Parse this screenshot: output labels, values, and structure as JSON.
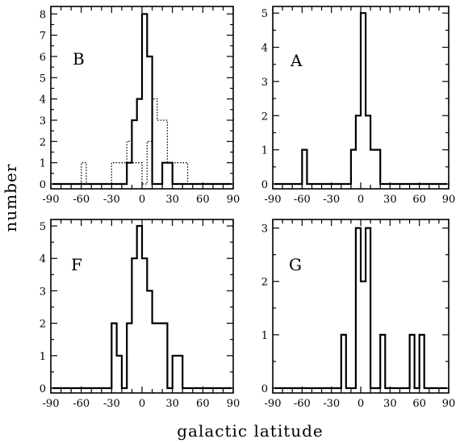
{
  "chart_data": {
    "type": "histogram",
    "xlabel": "galactic latitude",
    "ylabel": "number",
    "xlim": [
      -90,
      90
    ],
    "xticks": [
      -90,
      -60,
      -30,
      0,
      30,
      60,
      90
    ],
    "bin_width": 5,
    "panels": [
      {
        "label": "B",
        "ylim": [
          0,
          8.2
        ],
        "yticks": [
          0,
          1,
          2,
          3,
          4,
          5,
          6,
          7,
          8
        ],
        "series": [
          {
            "style": "solid",
            "bins": [
              {
                "x0": -15,
                "x1": -10,
                "count": 1
              },
              {
                "x0": -10,
                "x1": -5,
                "count": 3
              },
              {
                "x0": -5,
                "x1": 0,
                "count": 4
              },
              {
                "x0": 0,
                "x1": 5,
                "count": 8
              },
              {
                "x0": 5,
                "x1": 10,
                "count": 6
              },
              {
                "x0": 10,
                "x1": 15,
                "count": 0
              },
              {
                "x0": 15,
                "x1": 20,
                "count": 0
              },
              {
                "x0": 20,
                "x1": 25,
                "count": 1
              },
              {
                "x0": 25,
                "x1": 30,
                "count": 1
              }
            ]
          },
          {
            "style": "dotted",
            "bins": [
              {
                "x0": -60,
                "x1": -55,
                "count": 1
              },
              {
                "x0": -30,
                "x1": -25,
                "count": 1
              },
              {
                "x0": -25,
                "x1": -20,
                "count": 1
              },
              {
                "x0": -20,
                "x1": -15,
                "count": 1
              },
              {
                "x0": -15,
                "x1": -10,
                "count": 2
              },
              {
                "x0": -10,
                "x1": -5,
                "count": 1
              },
              {
                "x0": -5,
                "x1": 0,
                "count": 1
              },
              {
                "x0": 0,
                "x1": 5,
                "count": 0
              },
              {
                "x0": 5,
                "x1": 10,
                "count": 2
              },
              {
                "x0": 10,
                "x1": 15,
                "count": 4
              },
              {
                "x0": 15,
                "x1": 20,
                "count": 3
              },
              {
                "x0": 20,
                "x1": 25,
                "count": 3
              },
              {
                "x0": 25,
                "x1": 30,
                "count": 1
              },
              {
                "x0": 30,
                "x1": 35,
                "count": 1
              },
              {
                "x0": 35,
                "x1": 40,
                "count": 1
              },
              {
                "x0": 40,
                "x1": 45,
                "count": 1
              }
            ]
          }
        ]
      },
      {
        "label": "A",
        "ylim": [
          0,
          5.1
        ],
        "yticks": [
          0,
          1,
          2,
          3,
          4,
          5
        ],
        "series": [
          {
            "style": "solid",
            "bins": [
              {
                "x0": -60,
                "x1": -55,
                "count": 1
              },
              {
                "x0": -10,
                "x1": -5,
                "count": 1
              },
              {
                "x0": -5,
                "x1": 0,
                "count": 2
              },
              {
                "x0": 0,
                "x1": 5,
                "count": 5
              },
              {
                "x0": 5,
                "x1": 10,
                "count": 2
              },
              {
                "x0": 10,
                "x1": 15,
                "count": 1
              },
              {
                "x0": 15,
                "x1": 20,
                "count": 1
              }
            ]
          }
        ]
      },
      {
        "label": "F",
        "ylim": [
          0,
          5.1
        ],
        "yticks": [
          0,
          1,
          2,
          3,
          4,
          5
        ],
        "series": [
          {
            "style": "solid",
            "bins": [
              {
                "x0": -30,
                "x1": -25,
                "count": 2
              },
              {
                "x0": -25,
                "x1": -20,
                "count": 1
              },
              {
                "x0": -20,
                "x1": -15,
                "count": 0
              },
              {
                "x0": -15,
                "x1": -10,
                "count": 2
              },
              {
                "x0": -10,
                "x1": -5,
                "count": 4
              },
              {
                "x0": -5,
                "x1": 0,
                "count": 5
              },
              {
                "x0": 0,
                "x1": 5,
                "count": 4
              },
              {
                "x0": 5,
                "x1": 10,
                "count": 3
              },
              {
                "x0": 10,
                "x1": 15,
                "count": 2
              },
              {
                "x0": 15,
                "x1": 20,
                "count": 2
              },
              {
                "x0": 20,
                "x1": 25,
                "count": 2
              },
              {
                "x0": 25,
                "x1": 30,
                "count": 0
              },
              {
                "x0": 30,
                "x1": 35,
                "count": 1
              },
              {
                "x0": 35,
                "x1": 40,
                "count": 1
              }
            ]
          }
        ]
      },
      {
        "label": "G",
        "ylim": [
          0,
          3.1
        ],
        "yticks": [
          0,
          1,
          2,
          3
        ],
        "series": [
          {
            "style": "solid",
            "bins": [
              {
                "x0": -20,
                "x1": -15,
                "count": 1
              },
              {
                "x0": -5,
                "x1": 0,
                "count": 3
              },
              {
                "x0": 0,
                "x1": 5,
                "count": 2
              },
              {
                "x0": 5,
                "x1": 10,
                "count": 3
              },
              {
                "x0": 20,
                "x1": 25,
                "count": 1
              },
              {
                "x0": 50,
                "x1": 55,
                "count": 1
              },
              {
                "x0": 60,
                "x1": 65,
                "count": 1
              }
            ]
          }
        ]
      }
    ]
  }
}
